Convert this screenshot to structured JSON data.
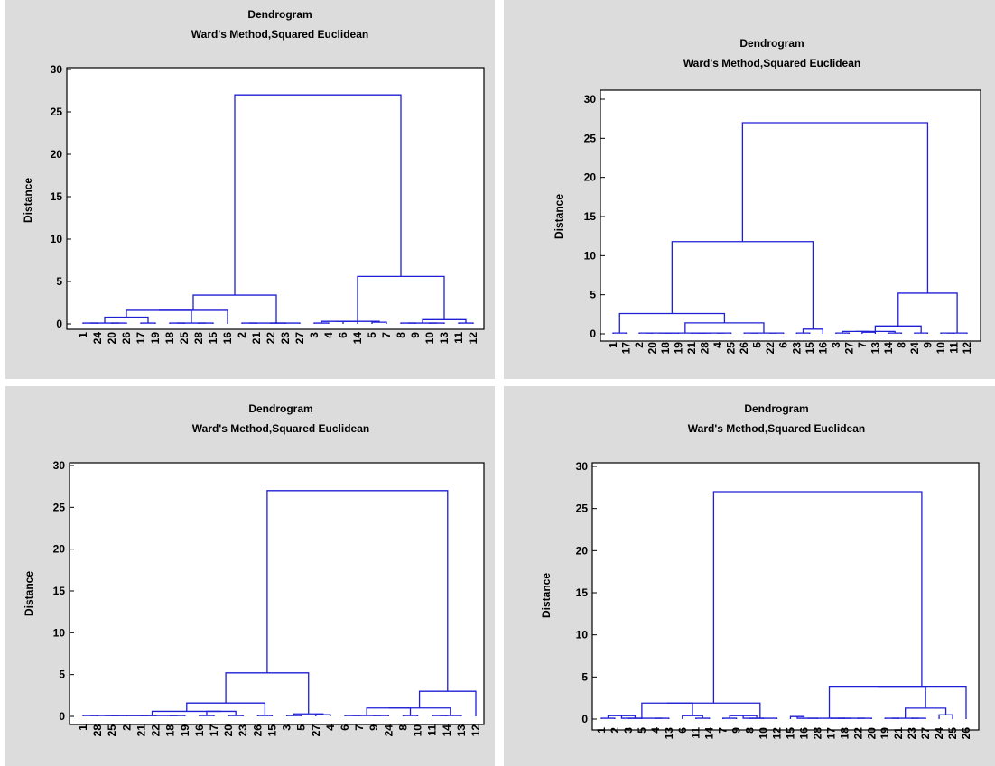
{
  "chart_data": [
    {
      "type": "dendrogram",
      "title": "Dendrogram",
      "subtitle": "Ward's Method,Squared Euclidean",
      "ylabel": "Distance",
      "ylim": [
        0,
        30
      ],
      "yticks": [
        0,
        5,
        10,
        15,
        20,
        25,
        30
      ],
      "leaves": [
        "1",
        "24",
        "20",
        "26",
        "17",
        "19",
        "18",
        "25",
        "28",
        "15",
        "16",
        "2",
        "21",
        "22",
        "23",
        "27",
        "3",
        "4",
        "6",
        "14",
        "5",
        "7",
        "8",
        "9",
        "10",
        "13",
        "11",
        "12"
      ],
      "merges": [
        {
          "a": "L0",
          "b": "L1",
          "h": 0.1
        },
        {
          "a": "L2",
          "b": "L3",
          "h": 0.1
        },
        {
          "a": "L4",
          "b": "L5",
          "h": 0.1
        },
        {
          "a": "L6",
          "b": "L7",
          "h": 0.1
        },
        {
          "a": "L8",
          "b": "L9",
          "h": 0.1
        },
        {
          "a": "L11",
          "b": "L12",
          "h": 0.1
        },
        {
          "a": "L13",
          "b": "L14",
          "h": 0.1
        },
        {
          "a": "L16",
          "b": "L17",
          "h": 0.1
        },
        {
          "a": "L18",
          "b": "L19",
          "h": 0.3
        },
        {
          "a": "L20",
          "b": "L21",
          "h": 0.2
        },
        {
          "a": "L22",
          "b": "L23",
          "h": 0.1
        },
        {
          "a": "L24",
          "b": "L25",
          "h": 0.1
        },
        {
          "a": "L26",
          "b": "L27",
          "h": 0.1
        },
        {
          "a": "M0",
          "b": "M1",
          "h": 0.1
        },
        {
          "a": "M13",
          "b": "M2",
          "h": 0.8
        },
        {
          "a": "M3",
          "b": "M4",
          "h": 0.1
        },
        {
          "a": "M14",
          "b": "M15",
          "h": 1.6
        },
        {
          "a": "M16",
          "b": "L10",
          "h": 1.6
        },
        {
          "a": "M5",
          "b": "L15",
          "h": 0.1
        },
        {
          "a": "M6",
          "b": "M18",
          "h": 0.1
        },
        {
          "a": "M17",
          "b": "M19",
          "h": 3.4
        },
        {
          "a": "M7",
          "b": "M8",
          "h": 0.3
        },
        {
          "a": "M21",
          "b": "M9",
          "h": 0.3
        },
        {
          "a": "M10",
          "b": "M11",
          "h": 0.1
        },
        {
          "a": "M23",
          "b": "M12",
          "h": 0.5
        },
        {
          "a": "M22",
          "b": "M24",
          "h": 5.6
        },
        {
          "a": "M20",
          "b": "M25",
          "h": 27.0
        }
      ]
    },
    {
      "type": "dendrogram",
      "title": "Dendrogram",
      "subtitle": "Ward's Method,Squared Euclidean",
      "ylabel": "Distance",
      "ylim": [
        0,
        30
      ],
      "yticks": [
        0,
        5,
        10,
        15,
        20,
        25,
        30
      ],
      "leaves": [
        "1",
        "17",
        "2",
        "20",
        "18",
        "19",
        "21",
        "28",
        "4",
        "25",
        "26",
        "5",
        "22",
        "6",
        "23",
        "15",
        "16",
        "3",
        "27",
        "7",
        "13",
        "14",
        "8",
        "24",
        "9",
        "10",
        "11",
        "12"
      ],
      "merges": [
        {
          "a": "L0",
          "b": "L1",
          "h": 0.1
        },
        {
          "a": "L2",
          "b": "L3",
          "h": 0.1
        },
        {
          "a": "L4",
          "b": "L5",
          "h": 0.1
        },
        {
          "a": "L6",
          "b": "L7",
          "h": 0.1
        },
        {
          "a": "L8",
          "b": "L9",
          "h": 0.1
        },
        {
          "a": "L10",
          "b": "L11",
          "h": 0.1
        },
        {
          "a": "L12",
          "b": "L13",
          "h": 0.1
        },
        {
          "a": "L14",
          "b": "L15",
          "h": 0.1
        },
        {
          "a": "L17",
          "b": "L18",
          "h": 0.1
        },
        {
          "a": "L19",
          "b": "L20",
          "h": 0.2
        },
        {
          "a": "L21",
          "b": "L22",
          "h": 0.1
        },
        {
          "a": "L23",
          "b": "L24",
          "h": 0.1
        },
        {
          "a": "L25",
          "b": "L26",
          "h": 0.1
        },
        {
          "a": "M1",
          "b": "M2",
          "h": 0.1
        },
        {
          "a": "M3",
          "b": "M4",
          "h": 0.1
        },
        {
          "a": "M13",
          "b": "M14",
          "h": 0.1
        },
        {
          "a": "M5",
          "b": "M6",
          "h": 0.1
        },
        {
          "a": "M15",
          "b": "M16",
          "h": 1.4
        },
        {
          "a": "M0",
          "b": "M17",
          "h": 2.6
        },
        {
          "a": "M7",
          "b": "L16",
          "h": 0.6
        },
        {
          "a": "M18",
          "b": "M19",
          "h": 11.8
        },
        {
          "a": "M8",
          "b": "M9",
          "h": 0.3
        },
        {
          "a": "M21",
          "b": "M10",
          "h": 0.3
        },
        {
          "a": "M22",
          "b": "M11",
          "h": 1.0
        },
        {
          "a": "M12",
          "b": "L27",
          "h": 0.1
        },
        {
          "a": "M23",
          "b": "M24",
          "h": 5.2
        },
        {
          "a": "M20",
          "b": "M25",
          "h": 27.0
        }
      ]
    },
    {
      "type": "dendrogram",
      "title": "Dendrogram",
      "subtitle": "Ward's Method,Squared Euclidean",
      "ylabel": "Distance",
      "ylim": [
        0,
        30
      ],
      "yticks": [
        0,
        5,
        10,
        15,
        20,
        25,
        30
      ],
      "leaves": [
        "1",
        "28",
        "25",
        "2",
        "21",
        "22",
        "18",
        "19",
        "16",
        "17",
        "20",
        "23",
        "26",
        "15",
        "3",
        "5",
        "27",
        "4",
        "6",
        "7",
        "9",
        "24",
        "8",
        "10",
        "11",
        "14",
        "13",
        "12"
      ],
      "merges": [
        {
          "a": "L0",
          "b": "L1",
          "h": 0.1
        },
        {
          "a": "L2",
          "b": "L3",
          "h": 0.1
        },
        {
          "a": "L4",
          "b": "L5",
          "h": 0.1
        },
        {
          "a": "L6",
          "b": "L7",
          "h": 0.1
        },
        {
          "a": "L8",
          "b": "L9",
          "h": 0.1
        },
        {
          "a": "L10",
          "b": "L11",
          "h": 0.1
        },
        {
          "a": "L12",
          "b": "L13",
          "h": 0.1
        },
        {
          "a": "L14",
          "b": "L15",
          "h": 0.1
        },
        {
          "a": "L16",
          "b": "L17",
          "h": 0.2
        },
        {
          "a": "L18",
          "b": "L19",
          "h": 0.1
        },
        {
          "a": "L20",
          "b": "L21",
          "h": 0.1
        },
        {
          "a": "L22",
          "b": "L23",
          "h": 0.1
        },
        {
          "a": "L24",
          "b": "L25",
          "h": 0.1
        },
        {
          "a": "M0",
          "b": "M1",
          "h": 0.1
        },
        {
          "a": "M13",
          "b": "M2",
          "h": 0.1
        },
        {
          "a": "M14",
          "b": "M3",
          "h": 0.1
        },
        {
          "a": "M4",
          "b": "M5",
          "h": 0.6
        },
        {
          "a": "M15",
          "b": "M16",
          "h": 0.6
        },
        {
          "a": "M17",
          "b": "M6",
          "h": 1.6
        },
        {
          "a": "M7",
          "b": "M8",
          "h": 0.3
        },
        {
          "a": "M18",
          "b": "M19",
          "h": 5.2
        },
        {
          "a": "M9",
          "b": "M10",
          "h": 0.1
        },
        {
          "a": "M21",
          "b": "M11",
          "h": 1.0
        },
        {
          "a": "M12",
          "b": "L26",
          "h": 0.1
        },
        {
          "a": "M22",
          "b": "M23",
          "h": 1.0
        },
        {
          "a": "L27",
          "b": "M24",
          "h": 3.0
        },
        {
          "a": "M20",
          "b": "M25",
          "h": 27.0
        }
      ]
    },
    {
      "type": "dendrogram",
      "title": "Dendrogram",
      "subtitle": "Ward's Method,Squared Euclidean",
      "ylabel": "Distance",
      "ylim": [
        0,
        30
      ],
      "yticks": [
        0,
        5,
        10,
        15,
        20,
        25,
        30
      ],
      "leaves": [
        "1",
        "2",
        "3",
        "5",
        "4",
        "13",
        "6",
        "11",
        "14",
        "7",
        "9",
        "8",
        "10",
        "12",
        "15",
        "16",
        "28",
        "17",
        "18",
        "22",
        "20",
        "19",
        "21",
        "23",
        "27",
        "24",
        "25",
        "26"
      ],
      "merges": [
        {
          "a": "L0",
          "b": "L1",
          "h": 0.1
        },
        {
          "a": "L2",
          "b": "L3",
          "h": 0.1
        },
        {
          "a": "L4",
          "b": "L5",
          "h": 0.1
        },
        {
          "a": "L7",
          "b": "L8",
          "h": 0.1
        },
        {
          "a": "L9",
          "b": "L10",
          "h": 0.1
        },
        {
          "a": "L11",
          "b": "L12",
          "h": 0.1
        },
        {
          "a": "L14",
          "b": "L15",
          "h": 0.3
        },
        {
          "a": "L17",
          "b": "L18",
          "h": 0.1
        },
        {
          "a": "L19",
          "b": "L20",
          "h": 0.1
        },
        {
          "a": "L21",
          "b": "L22",
          "h": 0.1
        },
        {
          "a": "L23",
          "b": "L24",
          "h": 0.1
        },
        {
          "a": "L25",
          "b": "L26",
          "h": 0.5
        },
        {
          "a": "M0",
          "b": "M1",
          "h": 0.4
        },
        {
          "a": "M12",
          "b": "M2",
          "h": 0.1
        },
        {
          "a": "L6",
          "b": "M3",
          "h": 0.4
        },
        {
          "a": "M4",
          "b": "M5",
          "h": 0.4
        },
        {
          "a": "M15",
          "b": "L13",
          "h": 0.1
        },
        {
          "a": "M13",
          "b": "M14",
          "h": 1.9
        },
        {
          "a": "M17",
          "b": "M16",
          "h": 1.9
        },
        {
          "a": "M6",
          "b": "L16",
          "h": 0.1
        },
        {
          "a": "M7",
          "b": "M8",
          "h": 0.1
        },
        {
          "a": "M9",
          "b": "M10",
          "h": 0.1
        },
        {
          "a": "M21",
          "b": "M11",
          "h": 1.3
        },
        {
          "a": "M19",
          "b": "M20",
          "h": 0.1
        },
        {
          "a": "M23",
          "b": "M22",
          "h": 3.9
        },
        {
          "a": "M24",
          "b": "L27",
          "h": 3.9
        },
        {
          "a": "M18",
          "b": "M25",
          "h": 27.0
        }
      ]
    }
  ]
}
